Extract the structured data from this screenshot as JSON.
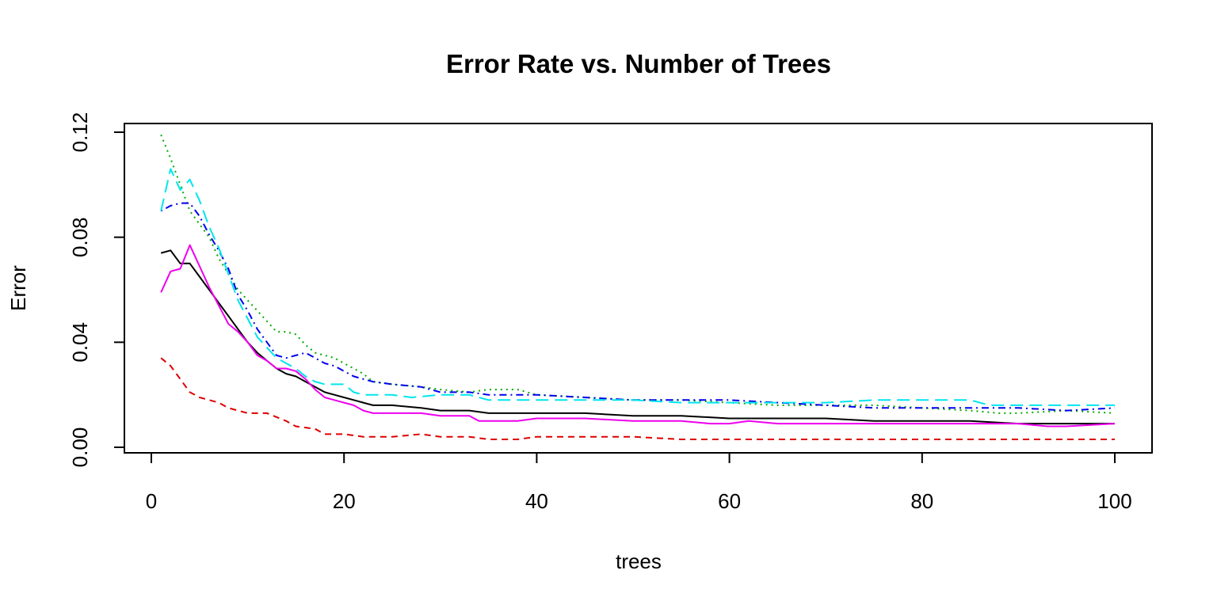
{
  "chart_data": {
    "type": "line",
    "title": "Error Rate vs. Number of Trees",
    "xlabel": "trees",
    "ylabel": "Error",
    "xlim": [
      0,
      100
    ],
    "ylim": [
      0,
      0.12
    ],
    "xticks": [
      0,
      20,
      40,
      60,
      80,
      100
    ],
    "xtick_labels": [
      "0",
      "20",
      "40",
      "60",
      "80",
      "100"
    ],
    "yticks": [
      0,
      0.04,
      0.08,
      0.12
    ],
    "ytick_labels": [
      "0.00",
      "0.04",
      "0.08",
      "0.12"
    ],
    "grid": false,
    "legend": "none",
    "series": [
      {
        "color": "#000000",
        "style": "solid",
        "points": [
          [
            1,
            0.074
          ],
          [
            2,
            0.075
          ],
          [
            3,
            0.07
          ],
          [
            4,
            0.07
          ],
          [
            5,
            0.065
          ],
          [
            6,
            0.06
          ],
          [
            7,
            0.055
          ],
          [
            8,
            0.05
          ],
          [
            9,
            0.045
          ],
          [
            10,
            0.04
          ],
          [
            11,
            0.036
          ],
          [
            12,
            0.033
          ],
          [
            13,
            0.03
          ],
          [
            14,
            0.028
          ],
          [
            15,
            0.027
          ],
          [
            16,
            0.025
          ],
          [
            17,
            0.023
          ],
          [
            18,
            0.021
          ],
          [
            19,
            0.02
          ],
          [
            20,
            0.019
          ],
          [
            21,
            0.018
          ],
          [
            22,
            0.017
          ],
          [
            23,
            0.016
          ],
          [
            25,
            0.016
          ],
          [
            28,
            0.015
          ],
          [
            30,
            0.014
          ],
          [
            33,
            0.014
          ],
          [
            35,
            0.013
          ],
          [
            40,
            0.013
          ],
          [
            45,
            0.013
          ],
          [
            50,
            0.012
          ],
          [
            55,
            0.012
          ],
          [
            60,
            0.011
          ],
          [
            65,
            0.011
          ],
          [
            70,
            0.011
          ],
          [
            75,
            0.01
          ],
          [
            80,
            0.01
          ],
          [
            85,
            0.01
          ],
          [
            90,
            0.009
          ],
          [
            95,
            0.009
          ],
          [
            100,
            0.009
          ]
        ]
      },
      {
        "color": "#dd0000",
        "style": "dashed",
        "points": [
          [
            1,
            0.034
          ],
          [
            2,
            0.031
          ],
          [
            3,
            0.026
          ],
          [
            4,
            0.021
          ],
          [
            5,
            0.019
          ],
          [
            6,
            0.018
          ],
          [
            7,
            0.017
          ],
          [
            8,
            0.015
          ],
          [
            9,
            0.014
          ],
          [
            10,
            0.013
          ],
          [
            12,
            0.013
          ],
          [
            14,
            0.01
          ],
          [
            15,
            0.008
          ],
          [
            17,
            0.007
          ],
          [
            18,
            0.005
          ],
          [
            20,
            0.005
          ],
          [
            22,
            0.004
          ],
          [
            25,
            0.004
          ],
          [
            28,
            0.005
          ],
          [
            30,
            0.004
          ],
          [
            33,
            0.004
          ],
          [
            35,
            0.003
          ],
          [
            38,
            0.003
          ],
          [
            40,
            0.004
          ],
          [
            45,
            0.004
          ],
          [
            50,
            0.004
          ],
          [
            55,
            0.003
          ],
          [
            60,
            0.003
          ],
          [
            65,
            0.003
          ],
          [
            70,
            0.003
          ],
          [
            75,
            0.003
          ],
          [
            80,
            0.003
          ],
          [
            85,
            0.003
          ],
          [
            90,
            0.003
          ],
          [
            95,
            0.003
          ],
          [
            100,
            0.003
          ]
        ]
      },
      {
        "color": "#00aa00",
        "style": "dotted",
        "points": [
          [
            1,
            0.119
          ],
          [
            2,
            0.11
          ],
          [
            3,
            0.1
          ],
          [
            4,
            0.09
          ],
          [
            5,
            0.085
          ],
          [
            6,
            0.08
          ],
          [
            7,
            0.072
          ],
          [
            8,
            0.066
          ],
          [
            9,
            0.06
          ],
          [
            10,
            0.056
          ],
          [
            11,
            0.052
          ],
          [
            12,
            0.048
          ],
          [
            13,
            0.044
          ],
          [
            14,
            0.044
          ],
          [
            15,
            0.043
          ],
          [
            16,
            0.039
          ],
          [
            17,
            0.036
          ],
          [
            18,
            0.035
          ],
          [
            19,
            0.034
          ],
          [
            20,
            0.032
          ],
          [
            21,
            0.03
          ],
          [
            22,
            0.028
          ],
          [
            23,
            0.025
          ],
          [
            25,
            0.024
          ],
          [
            28,
            0.023
          ],
          [
            30,
            0.022
          ],
          [
            33,
            0.021
          ],
          [
            35,
            0.022
          ],
          [
            38,
            0.022
          ],
          [
            40,
            0.02
          ],
          [
            45,
            0.019
          ],
          [
            50,
            0.018
          ],
          [
            55,
            0.018
          ],
          [
            60,
            0.017
          ],
          [
            65,
            0.016
          ],
          [
            70,
            0.016
          ],
          [
            75,
            0.016
          ],
          [
            80,
            0.015
          ],
          [
            85,
            0.014
          ],
          [
            88,
            0.013
          ],
          [
            90,
            0.013
          ],
          [
            95,
            0.014
          ],
          [
            100,
            0.013
          ]
        ]
      },
      {
        "color": "#0000ee",
        "style": "dotdash",
        "points": [
          [
            1,
            0.09
          ],
          [
            2,
            0.092
          ],
          [
            3,
            0.093
          ],
          [
            4,
            0.093
          ],
          [
            5,
            0.088
          ],
          [
            6,
            0.081
          ],
          [
            7,
            0.075
          ],
          [
            8,
            0.068
          ],
          [
            9,
            0.058
          ],
          [
            10,
            0.052
          ],
          [
            11,
            0.045
          ],
          [
            12,
            0.04
          ],
          [
            13,
            0.035
          ],
          [
            14,
            0.034
          ],
          [
            15,
            0.035
          ],
          [
            16,
            0.036
          ],
          [
            17,
            0.034
          ],
          [
            18,
            0.032
          ],
          [
            19,
            0.031
          ],
          [
            20,
            0.029
          ],
          [
            21,
            0.027
          ],
          [
            22,
            0.026
          ],
          [
            23,
            0.025
          ],
          [
            25,
            0.024
          ],
          [
            28,
            0.023
          ],
          [
            30,
            0.021
          ],
          [
            33,
            0.021
          ],
          [
            35,
            0.02
          ],
          [
            38,
            0.02
          ],
          [
            40,
            0.02
          ],
          [
            45,
            0.019
          ],
          [
            50,
            0.018
          ],
          [
            55,
            0.018
          ],
          [
            60,
            0.018
          ],
          [
            65,
            0.017
          ],
          [
            70,
            0.016
          ],
          [
            75,
            0.015
          ],
          [
            80,
            0.015
          ],
          [
            85,
            0.015
          ],
          [
            90,
            0.015
          ],
          [
            95,
            0.014
          ],
          [
            100,
            0.015
          ]
        ]
      },
      {
        "color": "#00e5ee",
        "style": "longdash",
        "points": [
          [
            1,
            0.09
          ],
          [
            2,
            0.106
          ],
          [
            3,
            0.098
          ],
          [
            4,
            0.102
          ],
          [
            5,
            0.094
          ],
          [
            6,
            0.084
          ],
          [
            7,
            0.076
          ],
          [
            8,
            0.066
          ],
          [
            9,
            0.056
          ],
          [
            10,
            0.049
          ],
          [
            11,
            0.042
          ],
          [
            12,
            0.038
          ],
          [
            13,
            0.034
          ],
          [
            14,
            0.032
          ],
          [
            15,
            0.03
          ],
          [
            16,
            0.027
          ],
          [
            17,
            0.025
          ],
          [
            18,
            0.024
          ],
          [
            19,
            0.024
          ],
          [
            20,
            0.024
          ],
          [
            21,
            0.021
          ],
          [
            22,
            0.02
          ],
          [
            25,
            0.02
          ],
          [
            27,
            0.019
          ],
          [
            30,
            0.02
          ],
          [
            33,
            0.02
          ],
          [
            35,
            0.018
          ],
          [
            40,
            0.018
          ],
          [
            45,
            0.018
          ],
          [
            50,
            0.018
          ],
          [
            55,
            0.017
          ],
          [
            60,
            0.017
          ],
          [
            65,
            0.017
          ],
          [
            70,
            0.017
          ],
          [
            75,
            0.018
          ],
          [
            80,
            0.018
          ],
          [
            85,
            0.018
          ],
          [
            87,
            0.016
          ],
          [
            90,
            0.016
          ],
          [
            95,
            0.016
          ],
          [
            100,
            0.016
          ]
        ]
      },
      {
        "color": "#ee00ee",
        "style": "solid",
        "points": [
          [
            1,
            0.059
          ],
          [
            2,
            0.067
          ],
          [
            3,
            0.068
          ],
          [
            4,
            0.077
          ],
          [
            5,
            0.069
          ],
          [
            6,
            0.061
          ],
          [
            7,
            0.054
          ],
          [
            8,
            0.047
          ],
          [
            9,
            0.044
          ],
          [
            10,
            0.04
          ],
          [
            11,
            0.035
          ],
          [
            12,
            0.033
          ],
          [
            13,
            0.03
          ],
          [
            14,
            0.03
          ],
          [
            15,
            0.029
          ],
          [
            16,
            0.026
          ],
          [
            17,
            0.022
          ],
          [
            18,
            0.019
          ],
          [
            19,
            0.018
          ],
          [
            20,
            0.017
          ],
          [
            21,
            0.016
          ],
          [
            22,
            0.014
          ],
          [
            23,
            0.013
          ],
          [
            25,
            0.013
          ],
          [
            28,
            0.013
          ],
          [
            30,
            0.012
          ],
          [
            33,
            0.012
          ],
          [
            34,
            0.01
          ],
          [
            35,
            0.01
          ],
          [
            38,
            0.01
          ],
          [
            40,
            0.011
          ],
          [
            45,
            0.011
          ],
          [
            50,
            0.01
          ],
          [
            55,
            0.01
          ],
          [
            58,
            0.009
          ],
          [
            60,
            0.009
          ],
          [
            62,
            0.01
          ],
          [
            65,
            0.009
          ],
          [
            70,
            0.009
          ],
          [
            75,
            0.009
          ],
          [
            80,
            0.009
          ],
          [
            85,
            0.009
          ],
          [
            90,
            0.009
          ],
          [
            93,
            0.008
          ],
          [
            95,
            0.008
          ],
          [
            100,
            0.009
          ]
        ]
      }
    ]
  }
}
